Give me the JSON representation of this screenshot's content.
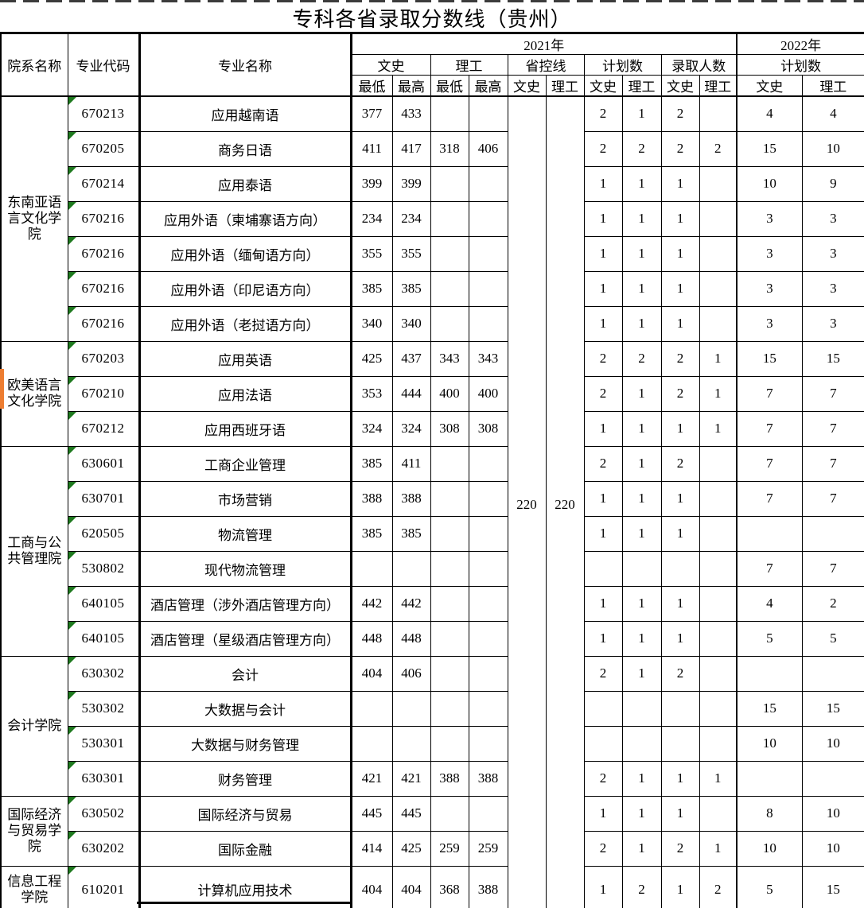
{
  "title": "专科各省录取分数线（贵州）",
  "colors": {
    "background": "#FFFFFF",
    "border": "#000000",
    "flag_green": "#1F7A1F",
    "marker_orange": "#ED7D31"
  },
  "icons": {
    "code_flag": "green-triangle",
    "dept_marker": "orange-bar"
  },
  "header": {
    "dept": "院系名称",
    "code": "专业代码",
    "major": "专业名称",
    "year2021": "2021年",
    "year2022": "2022年",
    "groups": [
      "文史",
      "理工",
      "省控线",
      "计划数",
      "录取人数",
      "计划数"
    ],
    "subs": [
      "最低",
      "最高",
      "最低",
      "最高",
      "文史",
      "理工",
      "文史",
      "理工",
      "文史",
      "理工",
      "文史",
      "理工"
    ]
  },
  "control_line": {
    "wenshi": "220",
    "ligong": "220"
  },
  "departments": [
    {
      "name": "东南亚语言文化学院",
      "rows": [
        {
          "code": "670213",
          "major": "应用越南语",
          "ws_min": "377",
          "ws_max": "433",
          "lg_min": "",
          "lg_max": "",
          "plan_ws": "2",
          "plan_lg": "1",
          "adm_ws": "2",
          "adm_lg": "",
          "p22_ws": "4",
          "p22_lg": "4"
        },
        {
          "code": "670205",
          "major": "商务日语",
          "ws_min": "411",
          "ws_max": "417",
          "lg_min": "318",
          "lg_max": "406",
          "plan_ws": "2",
          "plan_lg": "2",
          "adm_ws": "2",
          "adm_lg": "2",
          "p22_ws": "15",
          "p22_lg": "10"
        },
        {
          "code": "670214",
          "major": "应用泰语",
          "ws_min": "399",
          "ws_max": "399",
          "lg_min": "",
          "lg_max": "",
          "plan_ws": "1",
          "plan_lg": "1",
          "adm_ws": "1",
          "adm_lg": "",
          "p22_ws": "10",
          "p22_lg": "9"
        },
        {
          "code": "670216",
          "major": "应用外语（柬埔寨语方向）",
          "ws_min": "234",
          "ws_max": "234",
          "lg_min": "",
          "lg_max": "",
          "plan_ws": "1",
          "plan_lg": "1",
          "adm_ws": "1",
          "adm_lg": "",
          "p22_ws": "3",
          "p22_lg": "3"
        },
        {
          "code": "670216",
          "major": "应用外语（缅甸语方向）",
          "ws_min": "355",
          "ws_max": "355",
          "lg_min": "",
          "lg_max": "",
          "plan_ws": "1",
          "plan_lg": "1",
          "adm_ws": "1",
          "adm_lg": "",
          "p22_ws": "3",
          "p22_lg": "3"
        },
        {
          "code": "670216",
          "major": "应用外语（印尼语方向）",
          "ws_min": "385",
          "ws_max": "385",
          "lg_min": "",
          "lg_max": "",
          "plan_ws": "1",
          "plan_lg": "1",
          "adm_ws": "1",
          "adm_lg": "",
          "p22_ws": "3",
          "p22_lg": "3"
        },
        {
          "code": "670216",
          "major": "应用外语（老挝语方向）",
          "ws_min": "340",
          "ws_max": "340",
          "lg_min": "",
          "lg_max": "",
          "plan_ws": "1",
          "plan_lg": "1",
          "adm_ws": "1",
          "adm_lg": "",
          "p22_ws": "3",
          "p22_lg": "3"
        }
      ]
    },
    {
      "name": "欧美语言文化学院",
      "rows": [
        {
          "code": "670203",
          "major": "应用英语",
          "ws_min": "425",
          "ws_max": "437",
          "lg_min": "343",
          "lg_max": "343",
          "plan_ws": "2",
          "plan_lg": "2",
          "adm_ws": "2",
          "adm_lg": "1",
          "p22_ws": "15",
          "p22_lg": "15"
        },
        {
          "code": "670210",
          "major": "应用法语",
          "ws_min": "353",
          "ws_max": "444",
          "lg_min": "400",
          "lg_max": "400",
          "plan_ws": "2",
          "plan_lg": "1",
          "adm_ws": "2",
          "adm_lg": "1",
          "p22_ws": "7",
          "p22_lg": "7"
        },
        {
          "code": "670212",
          "major": "应用西班牙语",
          "ws_min": "324",
          "ws_max": "324",
          "lg_min": "308",
          "lg_max": "308",
          "plan_ws": "1",
          "plan_lg": "1",
          "adm_ws": "1",
          "adm_lg": "1",
          "p22_ws": "7",
          "p22_lg": "7"
        }
      ]
    },
    {
      "name": "工商与公共管理院",
      "rows": [
        {
          "code": "630601",
          "major": "工商企业管理",
          "ws_min": "385",
          "ws_max": "411",
          "lg_min": "",
          "lg_max": "",
          "plan_ws": "2",
          "plan_lg": "1",
          "adm_ws": "2",
          "adm_lg": "",
          "p22_ws": "7",
          "p22_lg": "7"
        },
        {
          "code": "630701",
          "major": "市场营销",
          "ws_min": "388",
          "ws_max": "388",
          "lg_min": "",
          "lg_max": "",
          "plan_ws": "1",
          "plan_lg": "1",
          "adm_ws": "1",
          "adm_lg": "",
          "p22_ws": "7",
          "p22_lg": "7"
        },
        {
          "code": "620505",
          "major": "物流管理",
          "ws_min": "385",
          "ws_max": "385",
          "lg_min": "",
          "lg_max": "",
          "plan_ws": "1",
          "plan_lg": "1",
          "adm_ws": "1",
          "adm_lg": "",
          "p22_ws": "",
          "p22_lg": ""
        },
        {
          "code": "530802",
          "major": "现代物流管理",
          "ws_min": "",
          "ws_max": "",
          "lg_min": "",
          "lg_max": "",
          "plan_ws": "",
          "plan_lg": "",
          "adm_ws": "",
          "adm_lg": "",
          "p22_ws": "7",
          "p22_lg": "7"
        },
        {
          "code": "640105",
          "major": "酒店管理（涉外酒店管理方向）",
          "ws_min": "442",
          "ws_max": "442",
          "lg_min": "",
          "lg_max": "",
          "plan_ws": "1",
          "plan_lg": "1",
          "adm_ws": "1",
          "adm_lg": "",
          "p22_ws": "4",
          "p22_lg": "2"
        },
        {
          "code": "640105",
          "major": "酒店管理（星级酒店管理方向）",
          "ws_min": "448",
          "ws_max": "448",
          "lg_min": "",
          "lg_max": "",
          "plan_ws": "1",
          "plan_lg": "1",
          "adm_ws": "1",
          "adm_lg": "",
          "p22_ws": "5",
          "p22_lg": "5"
        }
      ]
    },
    {
      "name": "会计学院",
      "rows": [
        {
          "code": "630302",
          "major": "会计",
          "ws_min": "404",
          "ws_max": "406",
          "lg_min": "",
          "lg_max": "",
          "plan_ws": "2",
          "plan_lg": "1",
          "adm_ws": "2",
          "adm_lg": "",
          "p22_ws": "",
          "p22_lg": ""
        },
        {
          "code": "530302",
          "major": "大数据与会计",
          "ws_min": "",
          "ws_max": "",
          "lg_min": "",
          "lg_max": "",
          "plan_ws": "",
          "plan_lg": "",
          "adm_ws": "",
          "adm_lg": "",
          "p22_ws": "15",
          "p22_lg": "15"
        },
        {
          "code": "530301",
          "major": "大数据与财务管理",
          "ws_min": "",
          "ws_max": "",
          "lg_min": "",
          "lg_max": "",
          "plan_ws": "",
          "plan_lg": "",
          "adm_ws": "",
          "adm_lg": "",
          "p22_ws": "10",
          "p22_lg": "10"
        },
        {
          "code": "630301",
          "major": "财务管理",
          "ws_min": "421",
          "ws_max": "421",
          "lg_min": "388",
          "lg_max": "388",
          "plan_ws": "2",
          "plan_lg": "1",
          "adm_ws": "1",
          "adm_lg": "1",
          "p22_ws": "",
          "p22_lg": ""
        }
      ]
    },
    {
      "name": "国际经济与贸易学院",
      "rows": [
        {
          "code": "630502",
          "major": "国际经济与贸易",
          "ws_min": "445",
          "ws_max": "445",
          "lg_min": "",
          "lg_max": "",
          "plan_ws": "1",
          "plan_lg": "1",
          "adm_ws": "1",
          "adm_lg": "",
          "p22_ws": "8",
          "p22_lg": "10"
        },
        {
          "code": "630202",
          "major": "国际金融",
          "ws_min": "414",
          "ws_max": "425",
          "lg_min": "259",
          "lg_max": "259",
          "plan_ws": "2",
          "plan_lg": "1",
          "adm_ws": "2",
          "adm_lg": "1",
          "p22_ws": "10",
          "p22_lg": "10"
        }
      ]
    },
    {
      "name": "信息工程学院",
      "rows": [
        {
          "code": "610201",
          "major": "计算机应用技术",
          "ws_min": "404",
          "ws_max": "404",
          "lg_min": "368",
          "lg_max": "388",
          "plan_ws": "1",
          "plan_lg": "2",
          "adm_ws": "1",
          "adm_lg": "2",
          "p22_ws": "5",
          "p22_lg": "15"
        }
      ]
    }
  ]
}
